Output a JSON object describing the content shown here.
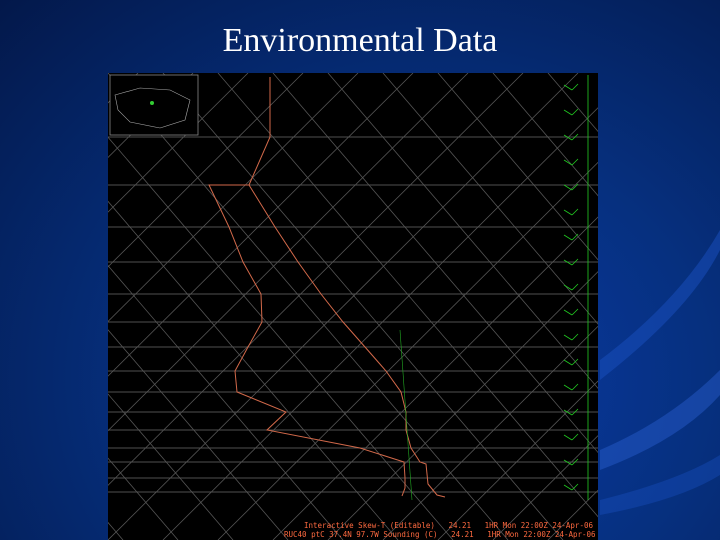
{
  "slide": {
    "title": "Environmental Data",
    "image": {
      "footer": [
        "Interactive Skew-T (Editable)   24.21   1HR Mon 22:00Z 24-Apr-06",
        "RUC40 ptC 37.4N 97.7W Sounding (C)   24.21   1HR Mon 22:00Z 24-Apr-06"
      ]
    }
  }
}
